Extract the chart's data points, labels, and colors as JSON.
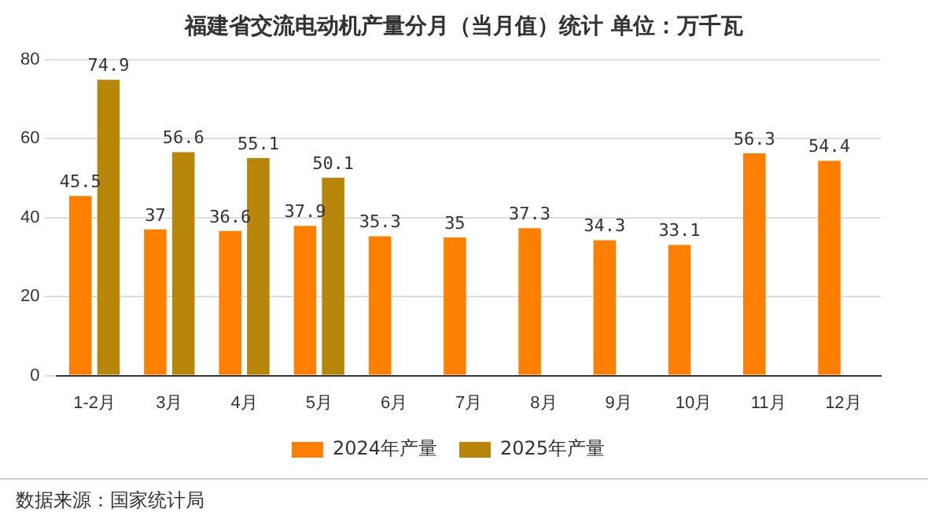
{
  "chart_data": {
    "type": "bar",
    "title": "福建省交流电动机产量分月（当月值）统计  单位：万千瓦",
    "categories": [
      "1-2月",
      "3月",
      "4月",
      "5月",
      "6月",
      "7月",
      "8月",
      "9月",
      "10月",
      "11月",
      "12月"
    ],
    "series": [
      {
        "name": "2024年产量",
        "color": "#ff8000",
        "values": [
          45.5,
          37,
          36.6,
          37.9,
          35.3,
          35,
          37.3,
          34.3,
          33.1,
          56.3,
          54.4
        ]
      },
      {
        "name": "2025年产量",
        "color": "#b8860b",
        "values": [
          74.9,
          56.6,
          55.1,
          50.1,
          null,
          null,
          null,
          null,
          null,
          null,
          null
        ]
      }
    ],
    "ylim": [
      0,
      80
    ],
    "yticks": [
      0,
      20,
      40,
      60,
      80
    ],
    "grid": "y",
    "legend": "bottom",
    "data_labels": true,
    "annotations": [
      "数据来源：国家统计局"
    ]
  }
}
